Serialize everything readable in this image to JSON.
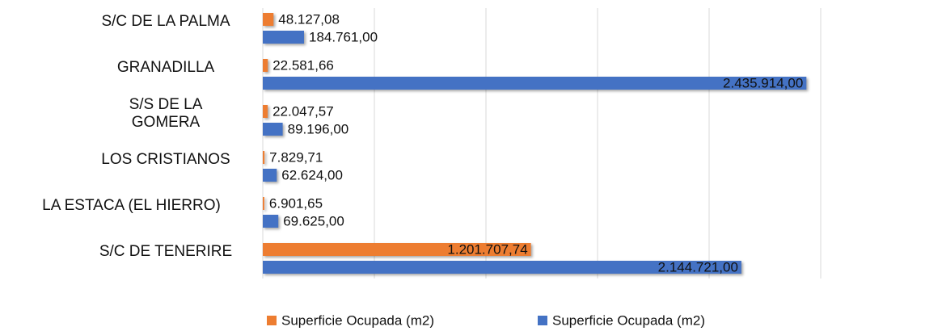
{
  "chart_data": {
    "type": "hbar",
    "categories": [
      "S/C DE LA PALMA",
      "GRANADILLA",
      "S/S DE LA GOMERA",
      "LOS CRISTIANOS",
      "LA ESTACA (EL HIERRO)",
      "S/C DE TENERIRE"
    ],
    "series": [
      {
        "name": "Superficie Ocupada (m2)",
        "color": "#ed7d31",
        "values": [
          48127.08,
          22581.66,
          22047.57,
          7829.71,
          6901.65,
          1201707.74
        ],
        "value_labels": [
          "48.127,08",
          "22.581,66",
          "22.047,57",
          "7.829,71",
          "6.901,65",
          "1.201.707,74"
        ]
      },
      {
        "name": "Superficie Ocupada (m2)",
        "color": "#4472c4",
        "values": [
          184761,
          2435914,
          89196,
          62624,
          69625,
          2144721
        ],
        "value_labels": [
          "184.761,00",
          "2.435.914,00",
          "89.196,00",
          "62.624,00",
          "69.625,00",
          "2.144.721,00"
        ]
      }
    ],
    "xlim": [
      0,
      2500000
    ],
    "xticks": [
      0,
      500000,
      1000000,
      1500000,
      2000000,
      2500000
    ],
    "grid": true,
    "legend": "bottom"
  }
}
